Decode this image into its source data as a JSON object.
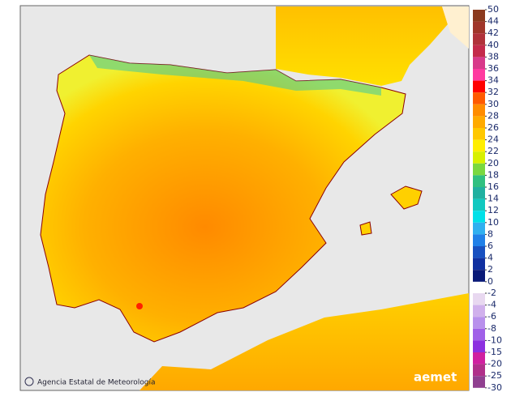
{
  "scale": [
    {
      "ticks": [
        50,
        44,
        42,
        40,
        38,
        36,
        34,
        32,
        30,
        28,
        26,
        24,
        22,
        20,
        18,
        16,
        14,
        12,
        10,
        8,
        6,
        4,
        2,
        0
      ],
      "colors": [
        "#8b3a1e",
        "#a0362a",
        "#b0323a",
        "#c42a4a",
        "#d83a8a",
        "#ff3aa0",
        "#ff0000",
        "#ff5a00",
        "#ff8c00",
        "#ffaa00",
        "#ffc800",
        "#ffee00",
        "#d8f000",
        "#7ad840",
        "#30c080",
        "#20b0a0",
        "#10c8c0",
        "#00e0e8",
        "#30b0f0",
        "#2080e8",
        "#1850c0",
        "#1030a0",
        "#0a1a78"
      ]
    },
    {
      "ticks": [
        -2,
        -4,
        -6,
        -8,
        -10,
        -15,
        -20,
        -25,
        -30
      ],
      "colors": [
        "#e8d8f0",
        "#d0b0ec",
        "#b890ec",
        "#a060e8",
        "#8c30e0",
        "#d020a0",
        "#b0308a",
        "#904090"
      ]
    }
  ],
  "credit": "Agencia Estatal de Meteorología",
  "logo": "aemet"
}
